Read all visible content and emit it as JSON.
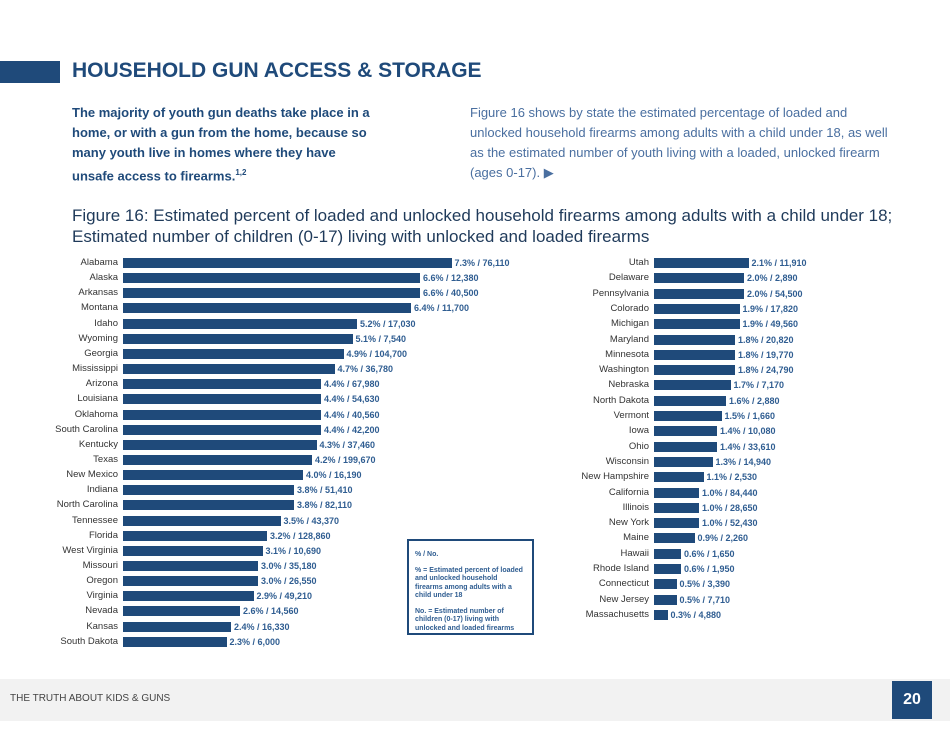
{
  "header": {
    "title": "HOUSEHOLD GUN ACCESS & STORAGE",
    "lead": "The majority of youth gun deaths take place in a home, or with a gun from the home, because so many youth live in homes where they have unsafe access to firearms.",
    "lead_sup": "1,2",
    "intro": "Figure 16 shows by state the estimated percentage of loaded and unlocked household firearms among adults with a child under 18, as well as the estimated number of youth living with a loaded, unlocked firearm (ages 0-17). ▶"
  },
  "chart_data": {
    "type": "bar",
    "orientation": "horizontal",
    "title": "Figure 16: Estimated percent of loaded and unlocked household firearms among adults with a child under 18; Estimated number of children (0-17) living with unlocked and loaded firearms",
    "color": "#1f4a7a",
    "left": [
      [
        "Alabama",
        7.3,
        "76,110"
      ],
      [
        "Alaska",
        6.6,
        "12,380"
      ],
      [
        "Arkansas",
        6.6,
        "40,500"
      ],
      [
        "Montana",
        6.4,
        "11,700"
      ],
      [
        "Idaho",
        5.2,
        "17,030"
      ],
      [
        "Wyoming",
        5.1,
        "7,540"
      ],
      [
        "Georgia",
        4.9,
        "104,700"
      ],
      [
        "Mississippi",
        4.7,
        "36,780"
      ],
      [
        "Arizona",
        4.4,
        "67,980"
      ],
      [
        "Louisiana",
        4.4,
        "54,630"
      ],
      [
        "Oklahoma",
        4.4,
        "40,560"
      ],
      [
        "South Carolina",
        4.4,
        "42,200"
      ],
      [
        "Kentucky",
        4.3,
        "37,460"
      ],
      [
        "Texas",
        4.2,
        "199,670"
      ],
      [
        "New Mexico",
        4.0,
        "16,190"
      ],
      [
        "Indiana",
        3.8,
        "51,410"
      ],
      [
        "North Carolina",
        3.8,
        "82,110"
      ],
      [
        "Tennessee",
        3.5,
        "43,370"
      ],
      [
        "Florida",
        3.2,
        "128,860"
      ],
      [
        "West Virginia",
        3.1,
        "10,690"
      ],
      [
        "Missouri",
        3.0,
        "35,180"
      ],
      [
        "Oregon",
        3.0,
        "26,550"
      ],
      [
        "Virginia",
        2.9,
        "49,210"
      ],
      [
        "Nevada",
        2.6,
        "14,560"
      ],
      [
        "Kansas",
        2.4,
        "16,330"
      ],
      [
        "South Dakota",
        2.3,
        "6,000"
      ]
    ],
    "right": [
      [
        "Utah",
        2.1,
        "11,910"
      ],
      [
        "Delaware",
        2.0,
        "2,890"
      ],
      [
        "Pennsylvania",
        2.0,
        "54,500"
      ],
      [
        "Colorado",
        1.9,
        "17,820"
      ],
      [
        "Michigan",
        1.9,
        "49,560"
      ],
      [
        "Maryland",
        1.8,
        "20,820"
      ],
      [
        "Minnesota",
        1.8,
        "19,770"
      ],
      [
        "Washington",
        1.8,
        "24,790"
      ],
      [
        "Nebraska",
        1.7,
        "7,170"
      ],
      [
        "North Dakota",
        1.6,
        "2,880"
      ],
      [
        "Vermont",
        1.5,
        "1,660"
      ],
      [
        "Iowa",
        1.4,
        "10,080"
      ],
      [
        "Ohio",
        1.4,
        "33,610"
      ],
      [
        "Wisconsin",
        1.3,
        "14,940"
      ],
      [
        "New Hampshire",
        1.1,
        "2,530"
      ],
      [
        "California",
        1.0,
        "84,440"
      ],
      [
        "Illinois",
        1.0,
        "28,650"
      ],
      [
        "New York",
        1.0,
        "52,430"
      ],
      [
        "Maine",
        0.9,
        "2,260"
      ],
      [
        "Hawaii",
        0.6,
        "1,650"
      ],
      [
        "Rhode Island",
        0.6,
        "1,950"
      ],
      [
        "Connecticut",
        0.5,
        "3,390"
      ],
      [
        "New Jersey",
        0.5,
        "7,710"
      ],
      [
        "Massachusetts",
        0.3,
        "4,880"
      ]
    ],
    "legend": {
      "head": "% / No.",
      "pct": "% = Estimated percent of loaded and unlocked household firearms among adults with a child under 18",
      "no": "No. = Estimated number of children (0-17) living with unlocked and loaded firearms"
    }
  },
  "footer": {
    "text": "THE TRUTH ABOUT KIDS & GUNS",
    "page": "20"
  }
}
